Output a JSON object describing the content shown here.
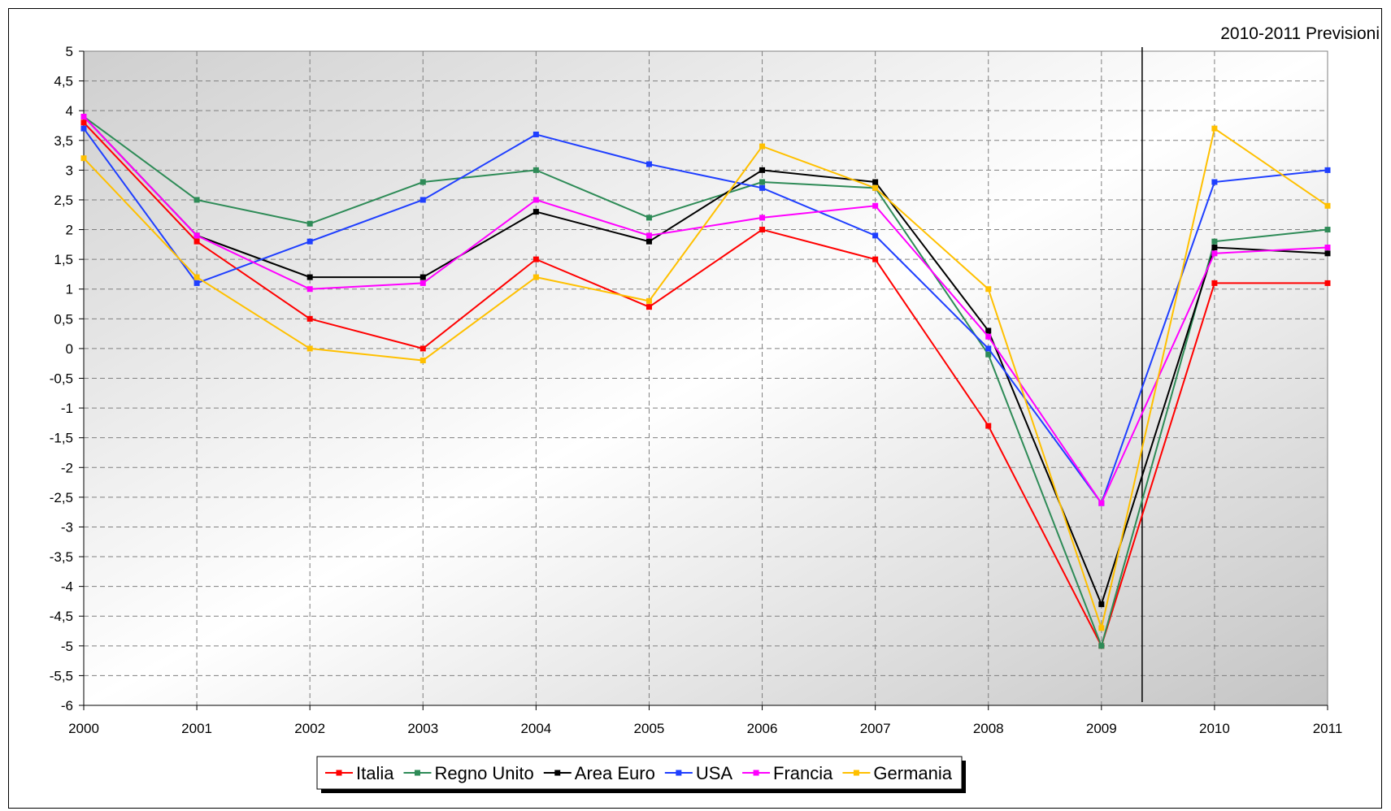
{
  "chart_data": {
    "type": "line",
    "title": "",
    "xlabel": "",
    "ylabel": "",
    "annotation": "2010-2011 Previsioni",
    "x": [
      "2000",
      "2001",
      "2002",
      "2003",
      "2004",
      "2005",
      "2006",
      "2007",
      "2008",
      "2009",
      "2010",
      "2011"
    ],
    "ylim": [
      -6,
      5
    ],
    "ytick_step": 0.5,
    "ytick_labels": [
      "5",
      "4,5",
      "4",
      "3,5",
      "3",
      "2,5",
      "2",
      "1,5",
      "1",
      "0,5",
      "0",
      "-0,5",
      "-1",
      "-1,5",
      "-2",
      "-2,5",
      "-3",
      "-3,5",
      "-4",
      "-4,5",
      "-5",
      "-5,5",
      "-6"
    ],
    "forecast_divider_after": "2009",
    "grid": true,
    "legend_position": "bottom-center",
    "series": [
      {
        "name": "Italia",
        "color": "#ff0000",
        "values": [
          3.8,
          1.8,
          0.5,
          0.0,
          1.5,
          0.7,
          2.0,
          1.5,
          -1.3,
          -5.0,
          1.1,
          1.1
        ]
      },
      {
        "name": "Regno Unito",
        "color": "#2e8b57",
        "values": [
          3.9,
          2.5,
          2.1,
          2.8,
          3.0,
          2.2,
          2.8,
          2.7,
          -0.1,
          -5.0,
          1.8,
          2.0
        ]
      },
      {
        "name": "Area Euro",
        "color": "#000000",
        "values": [
          3.9,
          1.9,
          1.2,
          1.2,
          2.3,
          1.8,
          3.0,
          2.8,
          0.3,
          -4.3,
          1.7,
          1.6
        ]
      },
      {
        "name": "USA",
        "color": "#1f3fff",
        "values": [
          3.7,
          1.1,
          1.8,
          2.5,
          3.6,
          3.1,
          2.7,
          1.9,
          0.0,
          -2.6,
          2.8,
          3.0
        ]
      },
      {
        "name": "Francia",
        "color": "#ff00ff",
        "values": [
          3.9,
          1.9,
          1.0,
          1.1,
          2.5,
          1.9,
          2.2,
          2.4,
          0.2,
          -2.6,
          1.6,
          1.7
        ]
      },
      {
        "name": "Germania",
        "color": "#ffc000",
        "values": [
          3.2,
          1.2,
          0.0,
          -0.2,
          1.2,
          0.8,
          3.4,
          2.7,
          1.0,
          -4.7,
          3.7,
          2.4
        ]
      }
    ]
  }
}
